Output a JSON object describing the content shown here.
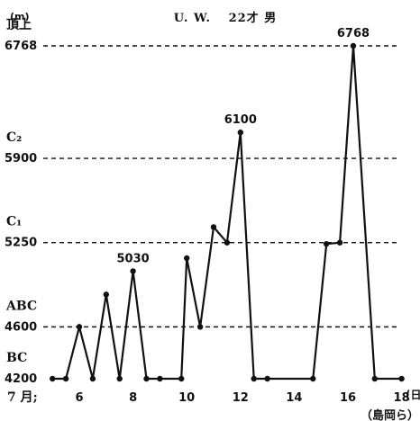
{
  "chart_data": {
    "type": "line",
    "title": "U. W.　 22才 男",
    "ylabel": "(m)",
    "x_prefix": "7 月;",
    "x_suffix": "(日)",
    "credit": "（島岡ら）",
    "xlim": [
      4.9,
      19.0
    ],
    "ylim": [
      4120,
      6880
    ],
    "x_ticks": [
      6,
      8,
      10,
      12,
      14,
      16,
      18
    ],
    "reference_levels": [
      {
        "name": "頂上",
        "value": 6768,
        "label": "6768",
        "dashed": true
      },
      {
        "name": "C₂",
        "value": 5900,
        "label": "5900",
        "dashed": true
      },
      {
        "name": "C₁",
        "value": 5250,
        "label": "5250",
        "dashed": true
      },
      {
        "name": "ABC",
        "value": 4600,
        "label": "4600",
        "dashed": true
      },
      {
        "name": "BC",
        "value": 4200,
        "label": "4200",
        "dashed": false
      }
    ],
    "series": [
      {
        "x": [
          5.0,
          5.5,
          6.0,
          6.5,
          7.0,
          7.5,
          8.0,
          8.5,
          9.0,
          9.8,
          10.0,
          10.5,
          11.0,
          11.5,
          12.0,
          12.5,
          13.0,
          14.7,
          15.2,
          15.7,
          16.2,
          17.0,
          18.0
        ],
        "y": [
          4200,
          4200,
          4600,
          4200,
          4850,
          4200,
          5030,
          4200,
          4200,
          4200,
          5130,
          4600,
          5370,
          5250,
          6100,
          4200,
          4200,
          4200,
          5240,
          5250,
          6768,
          4200,
          4200
        ]
      }
    ],
    "peak_labels": [
      {
        "x": 8.0,
        "y": 5030,
        "text": "5030"
      },
      {
        "x": 12.0,
        "y": 6100,
        "text": "6100"
      },
      {
        "x": 16.2,
        "y": 6768,
        "text": "6768"
      }
    ]
  }
}
